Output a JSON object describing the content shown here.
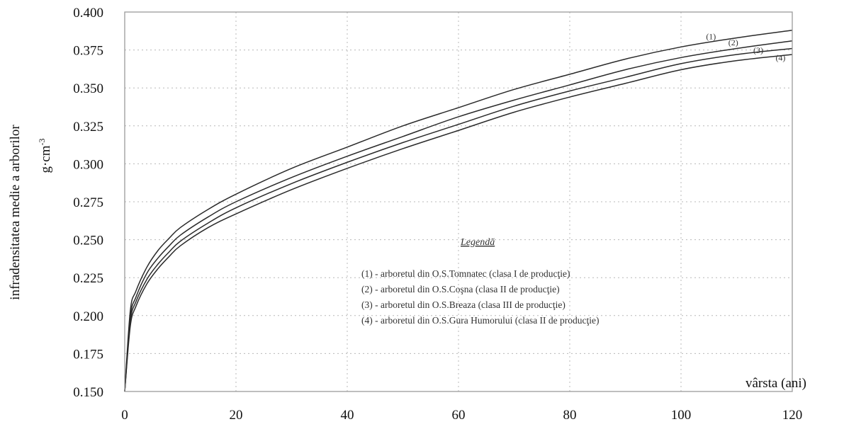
{
  "chart_data": {
    "type": "line",
    "title": "",
    "xlabel": "vârsta (ani)",
    "ylabel_line1": "infradensitatea medie a arborilor",
    "ylabel_line2_base": "g·cm",
    "ylabel_line2_sup": "-3",
    "xlim": [
      0,
      120
    ],
    "ylim": [
      0.15,
      0.4
    ],
    "x_ticks": [
      0,
      20,
      40,
      60,
      80,
      100,
      120
    ],
    "y_ticks": [
      0.15,
      0.175,
      0.2,
      0.225,
      0.25,
      0.275,
      0.3,
      0.325,
      0.35,
      0.375,
      0.4
    ],
    "x_tick_labels": [
      "0",
      "20",
      "40",
      "60",
      "80",
      "100",
      "120"
    ],
    "y_tick_labels": [
      "0.150",
      "0.175",
      "0.200",
      "0.225",
      "0.250",
      "0.275",
      "0.300",
      "0.325",
      "0.350",
      "0.375",
      "0.400"
    ],
    "grid": true,
    "legend": {
      "title": "Legendă",
      "placement": "center-right",
      "entries": [
        "(1) - arboretul din O.S.Tomnatec (clasa I de producţie)",
        "(2) - arboretul din O.S.Coşna (clasa II de producţie)",
        "(3) - arboretul din O.S.Breaza (clasa III de producţie)",
        "(4) - arboretul din O.S.Gura Humorului (clasa II de producţie)"
      ]
    },
    "x": [
      0,
      1,
      2,
      4,
      6,
      8,
      10,
      15,
      20,
      30,
      40,
      50,
      60,
      70,
      80,
      90,
      100,
      110,
      120
    ],
    "series": [
      {
        "name": "(1)",
        "values": [
          0.15,
          0.203,
          0.216,
          0.232,
          0.243,
          0.251,
          0.258,
          0.27,
          0.28,
          0.297,
          0.311,
          0.325,
          0.337,
          0.349,
          0.359,
          0.369,
          0.377,
          0.383,
          0.388
        ]
      },
      {
        "name": "(2)",
        "values": [
          0.15,
          0.199,
          0.212,
          0.228,
          0.238,
          0.246,
          0.253,
          0.265,
          0.275,
          0.291,
          0.305,
          0.318,
          0.331,
          0.342,
          0.352,
          0.362,
          0.37,
          0.376,
          0.381
        ]
      },
      {
        "name": "(3)",
        "values": [
          0.15,
          0.196,
          0.209,
          0.224,
          0.234,
          0.242,
          0.249,
          0.261,
          0.271,
          0.287,
          0.301,
          0.314,
          0.326,
          0.338,
          0.348,
          0.357,
          0.366,
          0.372,
          0.376
        ]
      },
      {
        "name": "(4)",
        "values": [
          0.15,
          0.193,
          0.206,
          0.221,
          0.231,
          0.239,
          0.246,
          0.258,
          0.267,
          0.283,
          0.297,
          0.31,
          0.322,
          0.334,
          0.344,
          0.353,
          0.362,
          0.368,
          0.372
        ]
      }
    ],
    "colors": {
      "line": "#2a2a2a",
      "grid": "#b8b8b8",
      "frame": "#9a9a9a"
    }
  }
}
